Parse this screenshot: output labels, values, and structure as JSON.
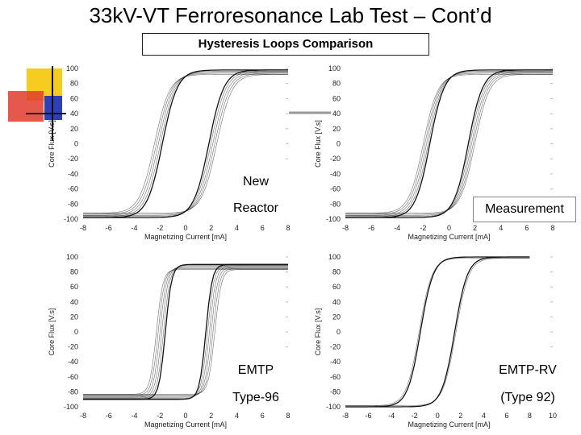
{
  "slide": {
    "title": "33kV-VT Ferroresonance Lab Test – Cont’d",
    "subtitle": "Hysteresis Loops Comparison"
  },
  "labels": {
    "new_reactor_1": "New",
    "new_reactor_2": "Reactor",
    "measurement": "Measurement",
    "emtp": "EMTP",
    "type96": "Type-96",
    "emtp_rv": "EMTP-RV",
    "type92": "(Type 92)"
  },
  "colors": {
    "deco_yellow": "#f5cc1f",
    "deco_red": "#e23b2e",
    "deco_blue": "#2f3fb8",
    "curve": "#111111"
  },
  "chart_data": [
    {
      "type": "line",
      "name": "New Reactor",
      "xlabel": "Magnetizing Current [mA]",
      "ylabel": "Core Flux [V.s]",
      "xlim": [
        -8,
        8
      ],
      "ylim": [
        -100,
        100
      ],
      "xticks": [
        "-8",
        "-6",
        "-4",
        "-2",
        "0",
        "2",
        "4",
        "6",
        "8"
      ],
      "yticks": [
        "100",
        "80",
        "60",
        "40",
        "20",
        "0",
        "-20",
        "-40",
        "-60",
        "-80",
        "-100"
      ],
      "loop": {
        "coercive_current": 2.2,
        "saturation_flux": 98,
        "steepness": 0.85,
        "bundle": 5
      }
    },
    {
      "type": "line",
      "name": "Measurement",
      "xlabel": "Magnetizing Current [mA]",
      "ylabel": "Core Flux [V.s]",
      "xlim": [
        -8,
        8
      ],
      "ylim": [
        -100,
        100
      ],
      "xticks": [
        "-8",
        "-6",
        "-4",
        "-2",
        "0",
        "2",
        "4",
        "6",
        "8"
      ],
      "yticks": [
        "100",
        "80",
        "60",
        "40",
        "20",
        "0",
        "-20",
        "-40",
        "-60",
        "-80",
        "-100"
      ],
      "loop": {
        "coercive_current": 1.8,
        "saturation_flux": 98,
        "steepness": 0.9,
        "bundle": 5
      }
    },
    {
      "type": "line",
      "name": "EMTP Type-96",
      "xlabel": "Magnetizing Current [mA]",
      "ylabel": "Core Flux [V.s]",
      "xlim": [
        -8,
        8
      ],
      "ylim": [
        -100,
        100
      ],
      "xticks": [
        "-8",
        "-6",
        "-4",
        "-2",
        "0",
        "2",
        "4",
        "6",
        "8"
      ],
      "yticks": [
        "100",
        "80",
        "60",
        "40",
        "20",
        "0",
        "-20",
        "-40",
        "-60",
        "-80",
        "-100"
      ],
      "loop": {
        "coercive_current": 2.0,
        "saturation_flux": 90,
        "steepness": 2.0,
        "bundle": 6
      }
    },
    {
      "type": "line",
      "name": "EMTP-RV (Type 92)",
      "xlabel": "Magnetizing Current [mA]",
      "ylabel": "Core Flux [V.s]",
      "xlim": [
        -8,
        10
      ],
      "ylim": [
        -100,
        100
      ],
      "xticks": [
        "-8",
        "-6",
        "-4",
        "-2",
        "0",
        "2",
        "4",
        "6",
        "8",
        "10"
      ],
      "yticks": [
        "100",
        "80",
        "60",
        "40",
        "20",
        "0",
        "-20",
        "-40",
        "-60",
        "-80",
        "-100"
      ],
      "loop": {
        "coercive_current": 1.6,
        "saturation_flux": 100,
        "steepness": 0.9,
        "bundle": 2
      }
    }
  ]
}
